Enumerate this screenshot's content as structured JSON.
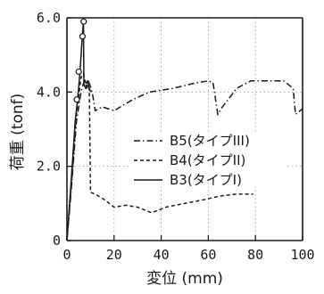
{
  "chart_data": {
    "type": "line",
    "xlabel": "変位 (mm)",
    "ylabel": "荷重 (tonf)",
    "xlim": [
      0,
      100
    ],
    "ylim": [
      0,
      6.0
    ],
    "x_ticks": [
      "0",
      "20",
      "40",
      "60",
      "80",
      "100"
    ],
    "x_tick_values": [
      0,
      20,
      40,
      60,
      80,
      100
    ],
    "y_ticks": [
      "0",
      "2.0",
      "4.0",
      "6.0"
    ],
    "y_tick_values": [
      0,
      2,
      4,
      6
    ],
    "grid": "dotted",
    "legend_position": "right",
    "series": [
      {
        "name": "B5(タイプIII)",
        "style": "dash-dot",
        "points": [
          [
            0,
            0
          ],
          [
            2,
            1.5
          ],
          [
            4,
            3.2
          ],
          [
            6,
            4.0
          ],
          [
            7.5,
            4.35
          ],
          [
            8.5,
            4.1
          ],
          [
            9,
            4.3
          ],
          [
            10,
            4.15
          ],
          [
            11,
            3.9
          ],
          [
            12,
            3.5
          ],
          [
            15,
            3.6
          ],
          [
            20,
            3.5
          ],
          [
            28,
            3.8
          ],
          [
            35,
            4.0
          ],
          [
            45,
            4.1
          ],
          [
            55,
            4.25
          ],
          [
            60,
            4.3
          ],
          [
            62,
            4.25
          ],
          [
            64,
            3.4
          ],
          [
            66,
            3.6
          ],
          [
            72,
            4.1
          ],
          [
            78,
            4.3
          ],
          [
            85,
            4.3
          ],
          [
            92,
            4.3
          ],
          [
            96,
            4.1
          ],
          [
            97,
            3.4
          ],
          [
            100,
            3.55
          ]
        ]
      },
      {
        "name": "B4(タイプII)",
        "style": "dashed",
        "points": [
          [
            0,
            0
          ],
          [
            2,
            1.6
          ],
          [
            4,
            3.4
          ],
          [
            6,
            4.4
          ],
          [
            7,
            4.5
          ],
          [
            8,
            4.2
          ],
          [
            9,
            4.35
          ],
          [
            9.5,
            4.0
          ],
          [
            10,
            1.3
          ],
          [
            12,
            1.25
          ],
          [
            16,
            1.1
          ],
          [
            20,
            0.9
          ],
          [
            25,
            0.95
          ],
          [
            30,
            0.9
          ],
          [
            36,
            0.75
          ],
          [
            42,
            0.9
          ],
          [
            50,
            1.0
          ],
          [
            58,
            1.1
          ],
          [
            65,
            1.2
          ],
          [
            72,
            1.25
          ],
          [
            79,
            1.25
          ]
        ]
      },
      {
        "name": "B3(タイプI)",
        "style": "solid",
        "points": [
          [
            0,
            0
          ],
          [
            2,
            1.8
          ],
          [
            3.5,
            3.2
          ],
          [
            4.5,
            3.8
          ],
          [
            5.5,
            4.5
          ],
          [
            6.5,
            5.5
          ],
          [
            7,
            5.9
          ],
          [
            7.2,
            4.2
          ],
          [
            8,
            4.1
          ],
          [
            9,
            4.2
          ],
          [
            10,
            4.0
          ]
        ]
      }
    ],
    "markers": [
      [
        4.2,
        3.8
      ],
      [
        5.0,
        4.55
      ],
      [
        6.6,
        5.5
      ],
      [
        7.1,
        5.9
      ]
    ]
  }
}
